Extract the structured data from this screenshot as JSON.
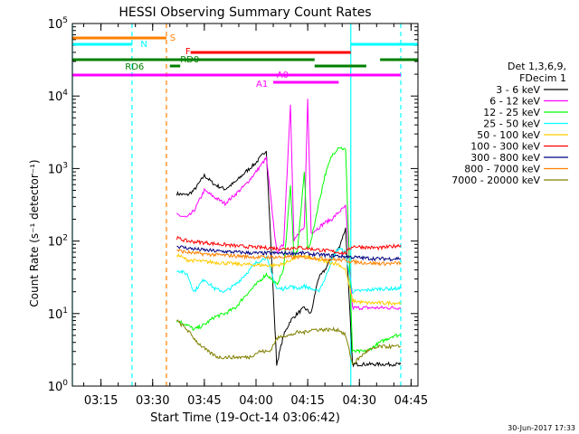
{
  "chart_data": {
    "type": "line",
    "title": "HESSI Observing Summary Count Rates",
    "xlabel": "Start Time (19-Oct-14 03:06:42)",
    "ylabel": "Count Rate (s⁻¹ detector⁻¹)",
    "y_scale": "log",
    "ylim": [
      1,
      100000
    ],
    "xlim": [
      "03:06:42",
      "04:47:00"
    ],
    "x_ticks": [
      "03:15",
      "03:30",
      "03:45",
      "04:00",
      "04:15",
      "04:30",
      "04:45"
    ],
    "y_ticks": [
      "10^0",
      "10^1",
      "10^2",
      "10^3",
      "10^4",
      "10^5"
    ],
    "footer_date": "30-Jun-2017 17:33",
    "legend": {
      "header": [
        "Det 1,3,6,9,",
        "FDecim 1"
      ],
      "position": "right"
    },
    "series": [
      {
        "name": "3 - 6 keV",
        "color": "#000000",
        "x": [
          "03:37",
          "03:40",
          "03:42",
          "03:45",
          "03:48",
          "03:51",
          "03:54",
          "03:57",
          "04:00",
          "04:03",
          "04:06",
          "04:08",
          "04:10",
          "04:12",
          "04:14",
          "04:16",
          "04:18",
          "04:20",
          "04:22",
          "04:24",
          "04:26",
          "04:28",
          "04:32",
          "04:36",
          "04:40",
          "04:42"
        ],
        "values": [
          450,
          430,
          500,
          800,
          600,
          520,
          650,
          900,
          1200,
          1800,
          2,
          5,
          8,
          10,
          12,
          10,
          30,
          40,
          60,
          80,
          150,
          2,
          2,
          2,
          2,
          2
        ]
      },
      {
        "name": "6 - 12 keV",
        "color": "#ff00ff",
        "x": [
          "03:37",
          "03:40",
          "03:42",
          "03:45",
          "03:48",
          "03:51",
          "03:54",
          "03:57",
          "04:00",
          "04:03",
          "04:06",
          "04:08",
          "04:10",
          "04:11",
          "04:12",
          "04:14",
          "04:15",
          "04:16",
          "04:18",
          "04:20",
          "04:22",
          "04:24",
          "04:26",
          "04:28",
          "04:32",
          "04:36",
          "04:40",
          "04:42"
        ],
        "values": [
          230,
          210,
          260,
          500,
          400,
          330,
          440,
          600,
          900,
          1400,
          70,
          90,
          8000,
          100,
          120,
          150,
          9000,
          130,
          150,
          180,
          200,
          250,
          300,
          12,
          12,
          12,
          12,
          12
        ]
      },
      {
        "name": "12 - 25 keV",
        "color": "#00ff00",
        "x": [
          "03:37",
          "03:40",
          "03:42",
          "03:45",
          "03:48",
          "03:51",
          "03:54",
          "03:57",
          "04:00",
          "04:03",
          "04:06",
          "04:08",
          "04:10",
          "04:11",
          "04:12",
          "04:14",
          "04:15",
          "04:16",
          "04:18",
          "04:20",
          "04:22",
          "04:24",
          "04:26",
          "04:28",
          "04:32",
          "04:36",
          "04:40",
          "04:42"
        ],
        "values": [
          8,
          7,
          6,
          7,
          9,
          10,
          12,
          18,
          25,
          35,
          25,
          40,
          600,
          60,
          70,
          900,
          80,
          100,
          300,
          800,
          1500,
          2000,
          1800,
          3,
          3,
          4,
          5,
          5
        ]
      },
      {
        "name": "25 - 50 keV",
        "color": "#00ffff",
        "x": [
          "03:37",
          "03:40",
          "03:42",
          "03:45",
          "03:48",
          "03:51",
          "03:54",
          "03:57",
          "04:00",
          "04:03",
          "04:06",
          "04:08",
          "04:10",
          "04:12",
          "04:14",
          "04:16",
          "04:18",
          "04:20",
          "04:22",
          "04:24",
          "04:26",
          "04:28",
          "04:32",
          "04:36",
          "04:40",
          "04:42"
        ],
        "values": [
          40,
          35,
          20,
          30,
          22,
          20,
          25,
          35,
          50,
          60,
          22,
          22,
          24,
          22,
          24,
          22,
          20,
          30,
          55,
          80,
          70,
          20,
          21,
          22,
          22,
          22
        ]
      },
      {
        "name": "50 - 100 keV",
        "color": "#ffcc00",
        "x": [
          "03:37",
          "03:40",
          "03:45",
          "03:50",
          "03:55",
          "04:00",
          "04:05",
          "04:08",
          "04:10",
          "04:12",
          "04:14",
          "04:16",
          "04:18",
          "04:20",
          "04:22",
          "04:24",
          "04:26",
          "04:28",
          "04:32",
          "04:36",
          "04:40",
          "04:42"
        ],
        "values": [
          65,
          55,
          52,
          50,
          48,
          47,
          46,
          48,
          55,
          60,
          62,
          58,
          55,
          52,
          50,
          48,
          40,
          15,
          14,
          14,
          14,
          14
        ]
      },
      {
        "name": "100 - 300 keV",
        "color": "#ff0000",
        "x": [
          "03:37",
          "03:40",
          "03:45",
          "03:50",
          "03:55",
          "04:00",
          "04:05",
          "04:08",
          "04:10",
          "04:12",
          "04:14",
          "04:16",
          "04:18",
          "04:20",
          "04:22",
          "04:24",
          "04:26",
          "04:28",
          "04:32",
          "04:36",
          "04:40",
          "04:42"
        ],
        "values": [
          110,
          100,
          95,
          90,
          85,
          82,
          80,
          78,
          80,
          82,
          80,
          78,
          76,
          74,
          72,
          70,
          68,
          85,
          82,
          80,
          85,
          88
        ]
      },
      {
        "name": "300 - 800 keV",
        "color": "#000080",
        "x": [
          "03:37",
          "03:40",
          "03:45",
          "03:50",
          "03:55",
          "04:00",
          "04:05",
          "04:08",
          "04:10",
          "04:12",
          "04:14",
          "04:16",
          "04:18",
          "04:20",
          "04:22",
          "04:24",
          "04:26",
          "04:28",
          "04:32",
          "04:36",
          "04:40",
          "04:42"
        ],
        "values": [
          85,
          80,
          75,
          72,
          70,
          68,
          68,
          68,
          68,
          68,
          68,
          66,
          65,
          64,
          63,
          62,
          61,
          60,
          58,
          57,
          57,
          58
        ]
      },
      {
        "name": "800 - 7000 keV",
        "color": "#ff8000",
        "x": [
          "03:37",
          "03:40",
          "03:45",
          "03:50",
          "03:55",
          "04:00",
          "04:05",
          "04:08",
          "04:10",
          "04:12",
          "04:14",
          "04:16",
          "04:18",
          "04:20",
          "04:22",
          "04:24",
          "04:26",
          "04:28",
          "04:32",
          "04:36",
          "04:40",
          "04:42"
        ],
        "values": [
          75,
          70,
          66,
          64,
          62,
          60,
          60,
          60,
          60,
          60,
          60,
          59,
          58,
          57,
          56,
          55,
          54,
          52,
          50,
          49,
          49,
          50
        ]
      },
      {
        "name": "7000 - 20000 keV",
        "color": "#808000",
        "x": [
          "03:37",
          "03:40",
          "03:43",
          "03:46",
          "03:49",
          "03:52",
          "03:55",
          "03:58",
          "04:01",
          "04:04",
          "04:06",
          "04:08",
          "04:10",
          "04:12",
          "04:14",
          "04:16",
          "04:18",
          "04:20",
          "04:22",
          "04:24",
          "04:26",
          "04:28",
          "04:32",
          "04:36",
          "04:40",
          "04:42"
        ],
        "values": [
          8,
          6,
          4,
          3,
          2.5,
          2.5,
          2.5,
          2.5,
          3,
          3,
          4.5,
          5,
          5,
          5.5,
          5.5,
          6,
          6,
          6,
          6,
          6,
          5,
          2,
          3,
          3.5,
          3.5,
          3.5
        ]
      }
    ],
    "state_bars": [
      {
        "label": "S",
        "color": "#ff8000",
        "segments": [
          [
            "03:06:42",
            "03:34:00"
          ]
        ]
      },
      {
        "label": "N",
        "color": "#00ffff",
        "segments": [
          [
            "03:06:42",
            "03:24:00"
          ],
          [
            "04:27:30",
            "04:47:00"
          ]
        ]
      },
      {
        "label": "F",
        "color": "#ff0000",
        "segments": [
          [
            "03:41:00",
            "04:27:30"
          ]
        ]
      },
      {
        "label": "RD0",
        "color": "#008000",
        "segments": [
          [
            "03:06:42",
            "04:17:00"
          ],
          [
            "04:36:00",
            "04:47:00"
          ]
        ]
      },
      {
        "label": "RD6",
        "color": "#008000",
        "segments": [
          [
            "03:35:00",
            "03:38:00"
          ],
          [
            "04:17:00",
            "04:32:00"
          ]
        ]
      },
      {
        "label": "A1",
        "color": "#ff00ff",
        "segments": [
          [
            "03:06:42",
            "04:42:00"
          ]
        ]
      },
      {
        "label": "A0",
        "color": "#ff00ff",
        "segments": [
          [
            "04:05:00",
            "04:24:00"
          ]
        ]
      }
    ]
  }
}
